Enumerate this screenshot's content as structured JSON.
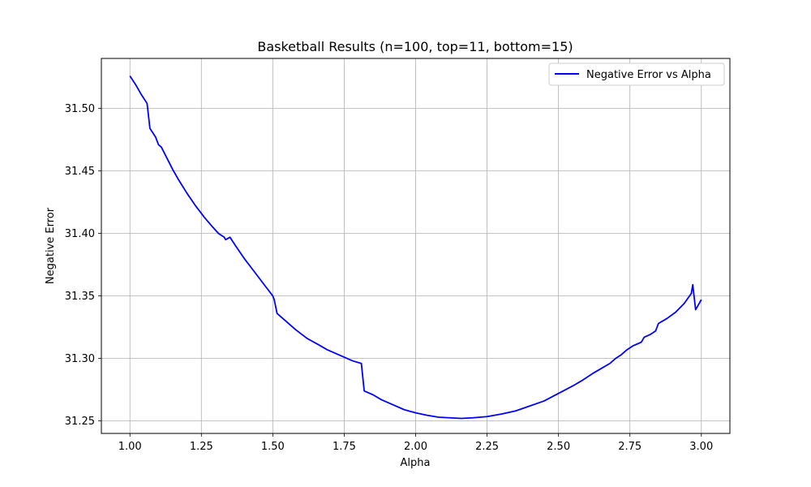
{
  "chart_data": {
    "type": "line",
    "title": "Basketball Results (n=100, top=11, bottom=15)",
    "xlabel": "Alpha",
    "ylabel": "Negative Error",
    "xlim": [
      0.9,
      3.1
    ],
    "ylim": [
      31.24,
      31.54
    ],
    "xticks": [
      1.0,
      1.25,
      1.5,
      1.75,
      2.0,
      2.25,
      2.5,
      2.75,
      3.0
    ],
    "xtick_labels": [
      "1.00",
      "1.25",
      "1.50",
      "1.75",
      "2.00",
      "2.25",
      "2.50",
      "2.75",
      "3.00"
    ],
    "yticks": [
      31.25,
      31.3,
      31.35,
      31.4,
      31.45,
      31.5
    ],
    "ytick_labels": [
      "31.25",
      "31.30",
      "31.35",
      "31.40",
      "31.45",
      "31.50"
    ],
    "grid": true,
    "legend": "upper-right",
    "series": [
      {
        "name": "Negative Error vs Alpha",
        "color": "#0000ff",
        "points": [
          [
            1.0,
            31.526
          ],
          [
            1.02,
            31.519
          ],
          [
            1.04,
            31.511
          ],
          [
            1.06,
            31.504
          ],
          [
            1.07,
            31.484
          ],
          [
            1.09,
            31.477
          ],
          [
            1.1,
            31.471
          ],
          [
            1.11,
            31.469
          ],
          [
            1.13,
            31.46
          ],
          [
            1.15,
            31.451
          ],
          [
            1.17,
            31.443
          ],
          [
            1.2,
            31.432
          ],
          [
            1.23,
            31.422
          ],
          [
            1.26,
            31.413
          ],
          [
            1.29,
            31.405
          ],
          [
            1.31,
            31.4
          ],
          [
            1.33,
            31.397
          ],
          [
            1.335,
            31.395
          ],
          [
            1.35,
            31.397
          ],
          [
            1.37,
            31.39
          ],
          [
            1.4,
            31.38
          ],
          [
            1.43,
            31.371
          ],
          [
            1.46,
            31.362
          ],
          [
            1.48,
            31.356
          ],
          [
            1.5,
            31.35
          ],
          [
            1.505,
            31.347
          ],
          [
            1.515,
            31.336
          ],
          [
            1.55,
            31.329
          ],
          [
            1.58,
            31.323
          ],
          [
            1.62,
            31.316
          ],
          [
            1.66,
            31.311
          ],
          [
            1.69,
            31.307
          ],
          [
            1.72,
            31.304
          ],
          [
            1.75,
            31.301
          ],
          [
            1.78,
            31.298
          ],
          [
            1.81,
            31.296
          ],
          [
            1.82,
            31.274
          ],
          [
            1.85,
            31.271
          ],
          [
            1.88,
            31.267
          ],
          [
            1.92,
            31.263
          ],
          [
            1.96,
            31.259
          ],
          [
            2.0,
            31.2565
          ],
          [
            2.04,
            31.2545
          ],
          [
            2.08,
            31.253
          ],
          [
            2.12,
            31.2525
          ],
          [
            2.16,
            31.252
          ],
          [
            2.2,
            31.2525
          ],
          [
            2.25,
            31.2535
          ],
          [
            2.3,
            31.2555
          ],
          [
            2.35,
            31.258
          ],
          [
            2.4,
            31.262
          ],
          [
            2.45,
            31.266
          ],
          [
            2.5,
            31.272
          ],
          [
            2.55,
            31.278
          ],
          [
            2.58,
            31.282
          ],
          [
            2.62,
            31.288
          ],
          [
            2.65,
            31.292
          ],
          [
            2.68,
            31.296
          ],
          [
            2.7,
            31.3
          ],
          [
            2.72,
            31.303
          ],
          [
            2.74,
            31.307
          ],
          [
            2.76,
            31.31
          ],
          [
            2.78,
            31.312
          ],
          [
            2.79,
            31.313
          ],
          [
            2.8,
            31.317
          ],
          [
            2.82,
            31.319
          ],
          [
            2.84,
            31.322
          ],
          [
            2.85,
            31.328
          ],
          [
            2.88,
            31.332
          ],
          [
            2.91,
            31.337
          ],
          [
            2.94,
            31.344
          ],
          [
            2.965,
            31.352
          ],
          [
            2.97,
            31.359
          ],
          [
            2.98,
            31.339
          ],
          [
            3.0,
            31.347
          ]
        ]
      }
    ]
  }
}
